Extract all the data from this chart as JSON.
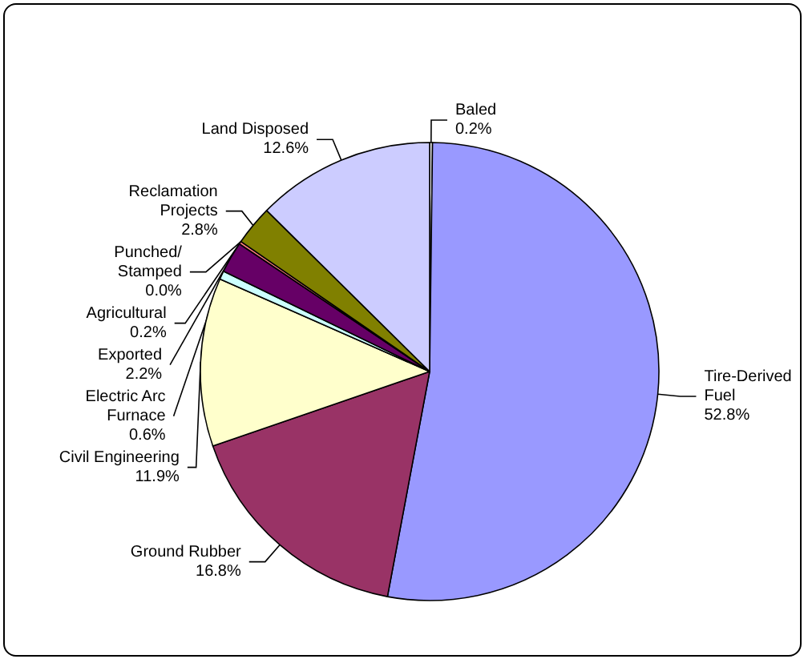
{
  "chart_data": {
    "type": "pie",
    "categories": [
      "Baled",
      "Tire-Derived\nFuel",
      "Ground Rubber",
      "Civil Engineering",
      "Electric Arc\nFurnace",
      "Exported",
      "Agricultural",
      "Punched/\nStamped",
      "Reclamation\nProjects",
      "Land Disposed"
    ],
    "values": [
      0.2,
      52.8,
      16.8,
      11.9,
      0.6,
      2.2,
      0.2,
      0.0,
      2.8,
      12.6
    ],
    "value_labels": [
      "0.2%",
      "52.8%",
      "16.8%",
      "11.9%",
      "0.6%",
      "2.2%",
      "0.2%",
      "0.0%",
      "2.8%",
      "12.6%"
    ],
    "colors": [
      "#ffffff",
      "#9999ff",
      "#993366",
      "#ffffcc",
      "#ccffff",
      "#660066",
      "#ff8080",
      "#0066cc",
      "#808000",
      "#ccccff"
    ]
  }
}
